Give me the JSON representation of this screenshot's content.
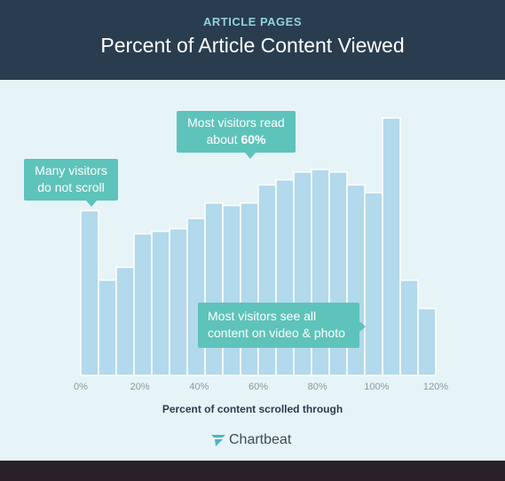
{
  "header": {
    "kicker": "ARTICLE PAGES",
    "title": "Percent of Article Content Viewed"
  },
  "colors": {
    "header_bg": "#2a3d4f",
    "background": "#e6f4f8",
    "bar": "#b2d9ec",
    "callout": "#5ec3bb",
    "tick_text": "#8a9aa3"
  },
  "chart_data": {
    "type": "bar",
    "xlabel": "Percent of content scrolled through",
    "ylabel": "",
    "x_tick_labels": [
      "0%",
      "20%",
      "40%",
      "60%",
      "80%",
      "100%",
      "120%"
    ],
    "x_ticks": [
      0,
      20,
      40,
      60,
      80,
      100,
      120
    ],
    "bin_width": 6,
    "x_range": [
      0,
      120
    ],
    "categories": [
      0,
      6,
      12,
      18,
      24,
      30,
      36,
      42,
      48,
      54,
      60,
      66,
      72,
      78,
      84,
      90,
      96,
      102,
      108,
      114
    ],
    "values": [
      64,
      37,
      42,
      55,
      56,
      57,
      61,
      67,
      66,
      67,
      74,
      76,
      79,
      80,
      79,
      74,
      71,
      100,
      37,
      26
    ],
    "ylim": [
      0,
      100
    ],
    "grid": false,
    "legend": "none",
    "annotations": [
      {
        "id": "scroll",
        "line1": "Many visitors",
        "line2": "do not scroll"
      },
      {
        "id": "read",
        "line1": "Most visitors read",
        "line2_prefix": "about ",
        "line2_bold": "60%"
      },
      {
        "id": "video",
        "line1": "Most visitors see all",
        "line2": "content on video & photo"
      }
    ]
  },
  "footer": {
    "brand": "Chartbeat",
    "logo_icon": "chartbeat-logo-icon"
  }
}
